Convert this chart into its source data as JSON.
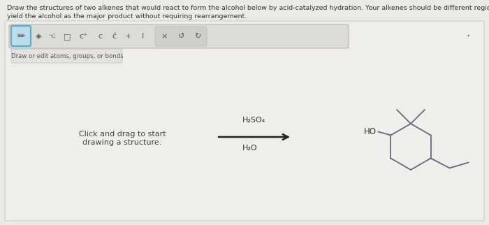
{
  "title_line1": "Draw the structures of two alkenes that would react to form the alcohol below by acid-catalyzed hydration. Your alkenes should be different regioisomers that",
  "title_line2": "yield the alcohol as the major product without requiring rearrangement.",
  "title_fontsize": 6.8,
  "bg_color": "#eceae5",
  "panel_color": "#f0eeea",
  "toolbar_bg": "#dddbd5",
  "toolbar_border": "#b8b5ae",
  "pencil_box_bg": "#b8dce8",
  "pencil_box_border": "#5aabcc",
  "draw_label": "Draw or edit atoms, groups, or bonds",
  "click_drag_text1": "Click and drag to start",
  "click_drag_text2": "drawing a structure.",
  "reagent_top": "H₂SO₄",
  "reagent_bottom": "H₂O",
  "arrow_color": "#222222",
  "ho_label": "HO",
  "mol_color": "#666680",
  "text_color": "#333333",
  "icon_color": "#555555",
  "toolbar_right_bg": "#d0cec9"
}
